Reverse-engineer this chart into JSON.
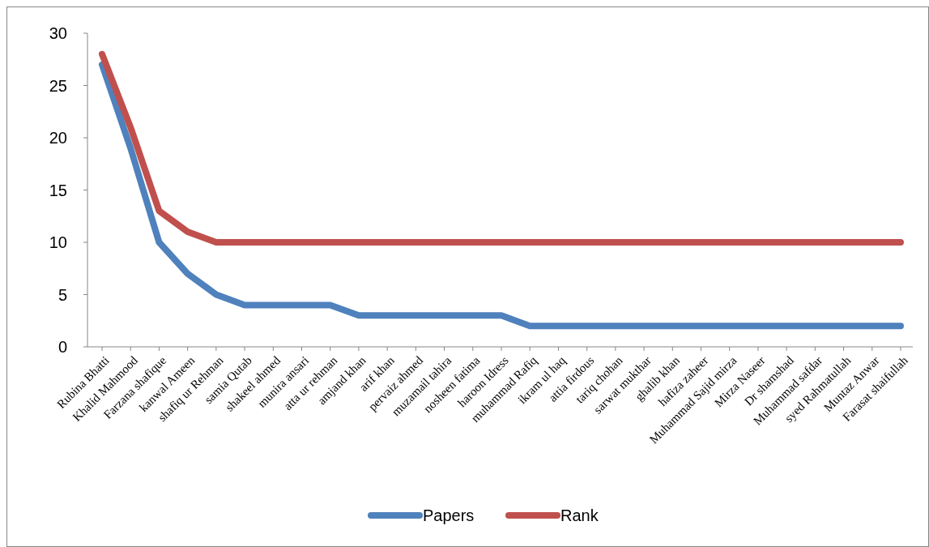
{
  "chart_data": {
    "type": "line",
    "categories": [
      "Rubina Bhatti",
      "Khalid Mahmood",
      "Farzana shafique",
      "kanwal Ameen",
      "shafiq ur Rehman",
      "samia Qutab",
      "shakeel ahmed",
      "munira ansari",
      "atta ur rehman",
      "amjand khan",
      "arif khan",
      "pervaiz ahmed",
      "muzamail tahira",
      "nosheen fatima",
      "haroon Idress",
      "muhammad Rafiq",
      "ikram ul haq",
      "attia firdous",
      "tariq chohan",
      "sarwat mukthar",
      "ghalib khan",
      "hafiza zaheer",
      "Muhammad Sajid mirza",
      "Mirza Naseer",
      "Dr shamshad",
      "Muhammad safdar",
      "syed Rahmatullah",
      "Muntaz Anwar",
      "Farasat shaifullah"
    ],
    "series": [
      {
        "name": "Papers",
        "color": "#4f81bd",
        "values": [
          27,
          19,
          10,
          7,
          5,
          4,
          4,
          4,
          4,
          3,
          3,
          3,
          3,
          3,
          3,
          2,
          2,
          2,
          2,
          2,
          2,
          2,
          2,
          2,
          2,
          2,
          2,
          2,
          2
        ]
      },
      {
        "name": "Rank",
        "color": "#c0504d",
        "values": [
          28,
          21,
          13,
          11,
          10,
          10,
          10,
          10,
          10,
          10,
          10,
          10,
          10,
          10,
          10,
          10,
          10,
          10,
          10,
          10,
          10,
          10,
          10,
          10,
          10,
          10,
          10,
          10,
          10
        ]
      }
    ],
    "ylim": [
      0,
      30
    ],
    "yticks": [
      0,
      5,
      10,
      15,
      20,
      25,
      30
    ],
    "grid": false,
    "legend": "bottom",
    "marker": "none",
    "line_style": "solid"
  }
}
